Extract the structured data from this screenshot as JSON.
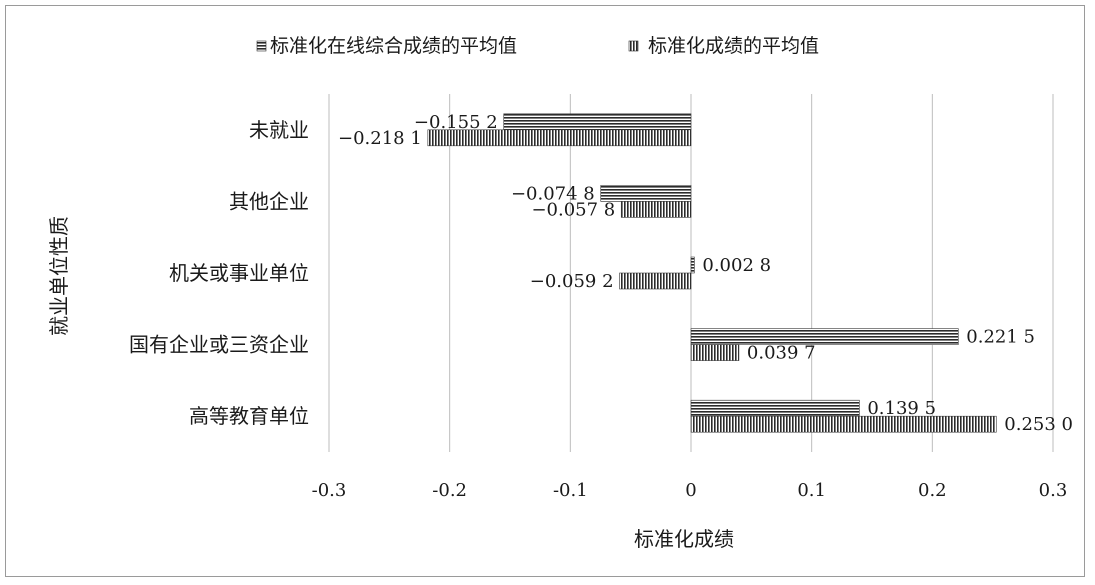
{
  "chart_data": {
    "type": "bar",
    "orientation": "horizontal",
    "categories": [
      "未就业",
      "其他企业",
      "机关或事业单位",
      "国有企业或三资企业",
      "高等教育单位"
    ],
    "series": [
      {
        "name": "标准化在线综合成绩的平均值",
        "values": [
          -0.1552,
          -0.0748,
          0.0028,
          0.2215,
          0.1395
        ],
        "labels": [
          "−0.155 2",
          "−0.074 8",
          "0.002 8",
          "0.221 5",
          "0.139 5"
        ],
        "pattern": "horizontal-lines"
      },
      {
        "name": "标准化成绩的平均值",
        "values": [
          -0.2181,
          -0.0578,
          -0.0592,
          0.0397,
          0.253
        ],
        "labels": [
          "−0.218 1",
          "−0.057 8",
          "−0.059 2",
          "0.039 7",
          "0.253 0"
        ],
        "pattern": "vertical-lines"
      }
    ],
    "xlabel": "标准化成绩",
    "ylabel": "就业单位性质",
    "xlim": [
      -0.3,
      0.3
    ],
    "xticks": [
      -0.3,
      -0.2,
      -0.1,
      0,
      0.1,
      0.2,
      0.3
    ],
    "xtick_labels": [
      "-0.3",
      "-0.2",
      "-0.1",
      "0",
      "0.1",
      "0.2",
      "0.3"
    ],
    "grid": "vertical",
    "legend_position": "top"
  }
}
